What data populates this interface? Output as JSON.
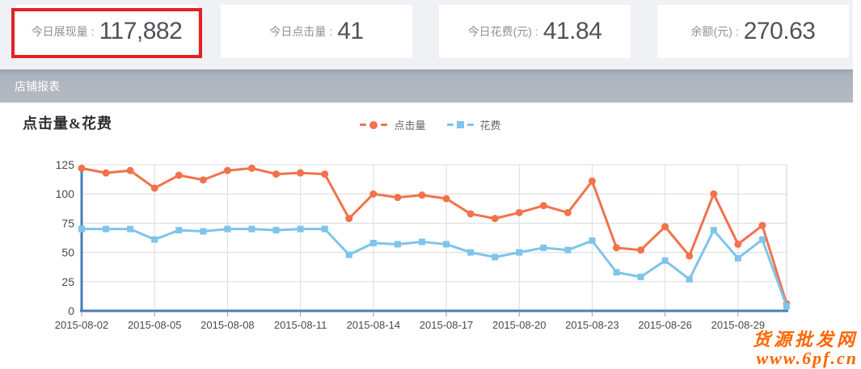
{
  "stats": {
    "highlight_color": "#e12222",
    "cards": [
      {
        "label": "今日展现量",
        "separator": ":",
        "value": "117,882",
        "highlighted": true
      },
      {
        "label": "今日点击量",
        "separator": ":",
        "value": "41",
        "highlighted": false
      },
      {
        "label": "今日花费(元)",
        "separator": ":",
        "value": "41.84",
        "highlighted": false
      },
      {
        "label": "余额(元)",
        "separator": ":",
        "value": "270.63",
        "highlighted": false
      }
    ]
  },
  "section": {
    "title": "店铺报表"
  },
  "chart_data": {
    "type": "line",
    "title": "点击量&花费",
    "x": [
      "2015-08-02",
      "2015-08-03",
      "2015-08-04",
      "2015-08-05",
      "2015-08-06",
      "2015-08-07",
      "2015-08-08",
      "2015-08-09",
      "2015-08-10",
      "2015-08-11",
      "2015-08-12",
      "2015-08-13",
      "2015-08-14",
      "2015-08-15",
      "2015-08-16",
      "2015-08-17",
      "2015-08-18",
      "2015-08-19",
      "2015-08-20",
      "2015-08-21",
      "2015-08-22",
      "2015-08-23",
      "2015-08-24",
      "2015-08-25",
      "2015-08-26",
      "2015-08-27",
      "2015-08-28",
      "2015-08-29",
      "2015-08-30",
      "2015-08-31"
    ],
    "x_tick_labels": [
      "2015-08-02",
      "2015-08-05",
      "2015-08-08",
      "2015-08-11",
      "2015-08-14",
      "2015-08-17",
      "2015-08-20",
      "2015-08-23",
      "2015-08-26",
      "2015-08-29"
    ],
    "x_tick_every": 3,
    "series": [
      {
        "name": "点击量",
        "marker": "circle",
        "color": "#f2724b",
        "values": [
          122,
          118,
          120,
          105,
          116,
          112,
          120,
          122,
          117,
          118,
          117,
          79,
          100,
          97,
          99,
          96,
          83,
          79,
          84,
          90,
          84,
          111,
          54,
          52,
          72,
          47,
          100,
          57,
          73,
          6
        ]
      },
      {
        "name": "花费",
        "marker": "square",
        "color": "#7fc4ea",
        "values": [
          70,
          70,
          70,
          61,
          69,
          68,
          70,
          70,
          69,
          70,
          70,
          48,
          58,
          57,
          59,
          57,
          50,
          46,
          50,
          54,
          52,
          60,
          33,
          29,
          43,
          27,
          69,
          45,
          61,
          4
        ]
      }
    ],
    "ylim": [
      0,
      125
    ],
    "y_ticks": [
      0,
      25,
      50,
      75,
      100,
      125
    ],
    "grid": true,
    "legend_position": "top-center",
    "axis_color": "#4a7db5",
    "grid_color": "#dcdcdc",
    "plot_border_color": "#cfcfcf",
    "tick_color": "#999999",
    "tick_label_color": "#4a4a4a"
  },
  "watermark": {
    "line1": "货源批发网",
    "line2": "www.6pf.cn",
    "color": "#ff6600"
  }
}
